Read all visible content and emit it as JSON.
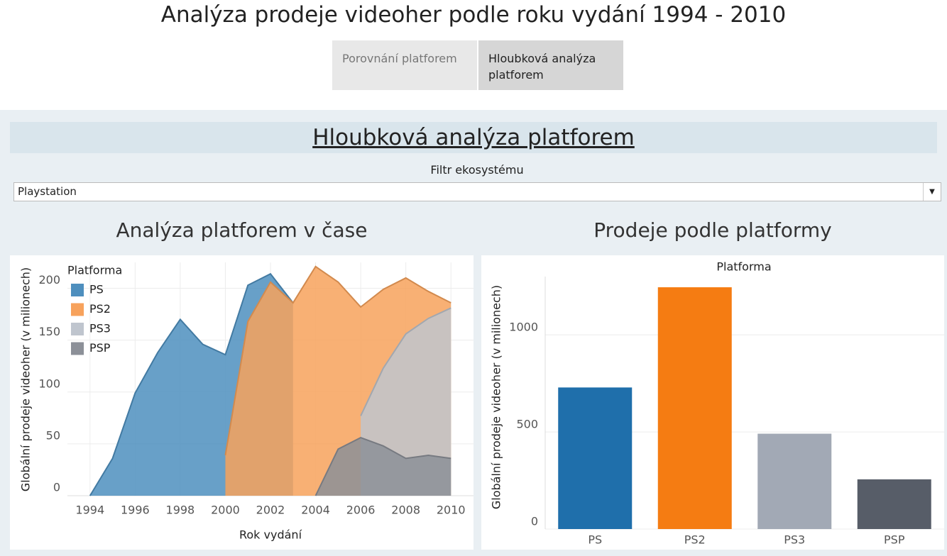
{
  "header": {
    "title": "Analýza prodeje videoher podle roku vydání 1994 - 2010"
  },
  "tabs": [
    {
      "label": "Porovnání platforem"
    },
    {
      "label": "Hloubková analýza platforem"
    }
  ],
  "section": {
    "title": "Hloubková analýza platforem",
    "filter_label": "Filtr ekosystému",
    "filter_value": "Playstation"
  },
  "chart_data": [
    {
      "type": "area",
      "title": "Analýza platforem v čase",
      "x_label": "Rok vydání",
      "y_label": "Globální prodeje videoher (v milionech)",
      "legend_title": "Platforma",
      "legend_position": "top-left",
      "grid": true,
      "x": [
        1994,
        1995,
        1996,
        1997,
        1998,
        1999,
        2000,
        2001,
        2002,
        2003,
        2004,
        2005,
        2006,
        2007,
        2008,
        2009,
        2010
      ],
      "xlim": [
        1993,
        2011
      ],
      "xticks": [
        1994,
        1996,
        1998,
        2000,
        2002,
        2004,
        2006,
        2008,
        2010
      ],
      "ylim": [
        0,
        225
      ],
      "yticks": [
        0,
        50,
        100,
        150,
        200
      ],
      "series": [
        {
          "name": "PS",
          "color": "#4e8fbe",
          "values": [
            0,
            36,
            99,
            138,
            170,
            146,
            136,
            203,
            214,
            186,
            null,
            null,
            null,
            null,
            null,
            null,
            null
          ]
        },
        {
          "name": "PS2",
          "color": "#f7a25c",
          "values": [
            null,
            null,
            null,
            null,
            null,
            null,
            39,
            168,
            206,
            186,
            221,
            206,
            182,
            199,
            210,
            197,
            186
          ]
        },
        {
          "name": "PS3",
          "color": "#bfc5ce",
          "values": [
            null,
            null,
            null,
            null,
            null,
            null,
            null,
            null,
            null,
            null,
            null,
            null,
            77,
            123,
            156,
            171,
            181
          ]
        },
        {
          "name": "PSP",
          "color": "#8c9098",
          "values": [
            null,
            null,
            null,
            null,
            null,
            null,
            null,
            null,
            null,
            null,
            0,
            45,
            56,
            48,
            36,
            39,
            36
          ]
        }
      ]
    },
    {
      "type": "bar",
      "title": "Prodeje podle platformy",
      "subtitle": "Platforma",
      "y_label": "Globální prodeje videoher (v milionech)",
      "grid": true,
      "categories": [
        "PS",
        "PS2",
        "PS3",
        "PSP"
      ],
      "values": [
        729,
        1245,
        491,
        256
      ],
      "colors": [
        "#1f6fab",
        "#f57c12",
        "#a2a9b5",
        "#575d68"
      ],
      "ylim": [
        0,
        1300
      ],
      "yticks": [
        0,
        500,
        1000
      ]
    }
  ]
}
